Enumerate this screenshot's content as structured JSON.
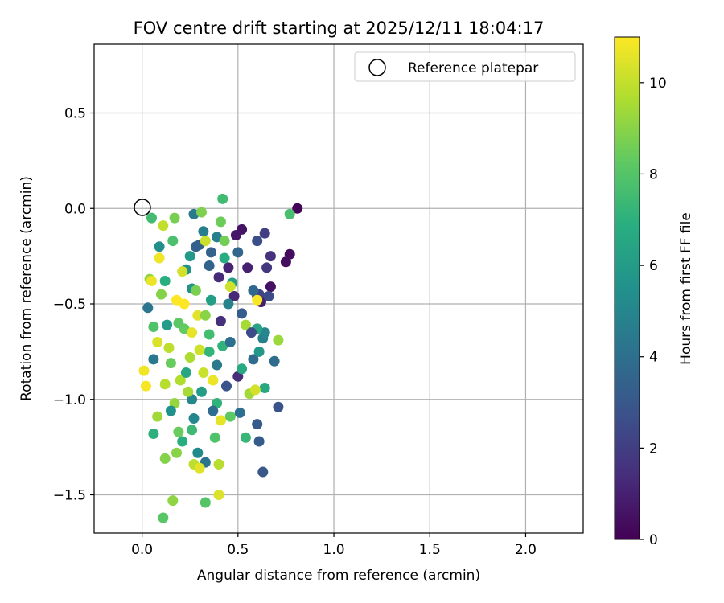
{
  "chart_data": {
    "type": "scatter",
    "title": "FOV centre drift starting at 2025/12/11 18:04:17",
    "xlabel": "Angular distance from reference (arcmin)",
    "ylabel": "Rotation from reference (arcmin)",
    "xlim": [
      -0.25,
      2.3
    ],
    "ylim": [
      -1.7,
      0.86
    ],
    "xticks": [
      0.0,
      0.5,
      1.0,
      1.5,
      2.0
    ],
    "xtick_labels": [
      "0.0",
      "0.5",
      "1.0",
      "1.5",
      "2.0"
    ],
    "yticks": [
      0.5,
      0.0,
      -0.5,
      -1.0,
      -1.5
    ],
    "ytick_labels": [
      "0.5",
      "0.0",
      "−0.5",
      "−1.0",
      "−1.5"
    ],
    "grid": true,
    "legend": {
      "position": "top-right",
      "entries": [
        "Reference platepar"
      ]
    },
    "reference_point": {
      "x": 0.0,
      "y": 0.0
    },
    "colorbar": {
      "label": "Hours from first FF file",
      "colormap": "viridis",
      "range": [
        0,
        11
      ],
      "ticks": [
        0,
        2,
        4,
        6,
        8,
        10
      ],
      "tick_labels": [
        "0",
        "2",
        "4",
        "6",
        "8",
        "10"
      ]
    },
    "series": [
      {
        "name": "FOV centre drift",
        "points": [
          {
            "x": 0.81,
            "y": 0.0,
            "hours": 0.1
          },
          {
            "x": 0.77,
            "y": -0.24,
            "hours": 0.3
          },
          {
            "x": 0.75,
            "y": -0.28,
            "hours": 0.4
          },
          {
            "x": 0.67,
            "y": -0.41,
            "hours": 0.5
          },
          {
            "x": 0.52,
            "y": -0.11,
            "hours": 0.6
          },
          {
            "x": 0.49,
            "y": -0.14,
            "hours": 0.7
          },
          {
            "x": 0.6,
            "y": -0.46,
            "hours": 0.8
          },
          {
            "x": 0.62,
            "y": -0.49,
            "hours": 0.9
          },
          {
            "x": 0.55,
            "y": -0.31,
            "hours": 1.0
          },
          {
            "x": 0.45,
            "y": -0.31,
            "hours": 1.1
          },
          {
            "x": 0.48,
            "y": -0.46,
            "hours": 1.2
          },
          {
            "x": 0.4,
            "y": -0.36,
            "hours": 1.3
          },
          {
            "x": 0.5,
            "y": -0.88,
            "hours": 1.4
          },
          {
            "x": 0.41,
            "y": -0.59,
            "hours": 1.5
          },
          {
            "x": 0.67,
            "y": -0.25,
            "hours": 1.6
          },
          {
            "x": 0.65,
            "y": -0.31,
            "hours": 1.8
          },
          {
            "x": 0.64,
            "y": -0.13,
            "hours": 2.0
          },
          {
            "x": 0.61,
            "y": -0.45,
            "hours": 2.2
          },
          {
            "x": 0.66,
            "y": -0.46,
            "hours": 2.4
          },
          {
            "x": 0.6,
            "y": -0.17,
            "hours": 2.6
          },
          {
            "x": 0.71,
            "y": -1.04,
            "hours": 2.8
          },
          {
            "x": 0.63,
            "y": -1.38,
            "hours": 3.0
          },
          {
            "x": 0.6,
            "y": -1.13,
            "hours": 3.1
          },
          {
            "x": 0.61,
            "y": -1.22,
            "hours": 3.2
          },
          {
            "x": 0.28,
            "y": -0.2,
            "hours": 3.3
          },
          {
            "x": 0.3,
            "y": -0.19,
            "hours": 3.4
          },
          {
            "x": 0.36,
            "y": -0.23,
            "hours": 3.5
          },
          {
            "x": 0.5,
            "y": -0.23,
            "hours": 3.6
          },
          {
            "x": 0.58,
            "y": -0.43,
            "hours": 3.7
          },
          {
            "x": 0.58,
            "y": -0.79,
            "hours": 3.8
          },
          {
            "x": 0.69,
            "y": -0.8,
            "hours": 3.9
          },
          {
            "x": 0.51,
            "y": -1.07,
            "hours": 4.0
          },
          {
            "x": 0.33,
            "y": -1.33,
            "hours": 4.2
          },
          {
            "x": 0.03,
            "y": -0.52,
            "hours": 4.3
          },
          {
            "x": 0.06,
            "y": -0.79,
            "hours": 4.4
          },
          {
            "x": 0.27,
            "y": -0.03,
            "hours": 4.5
          },
          {
            "x": 0.32,
            "y": -0.12,
            "hours": 4.6
          },
          {
            "x": 0.39,
            "y": -0.15,
            "hours": 4.7
          },
          {
            "x": 0.63,
            "y": -0.68,
            "hours": 4.8
          },
          {
            "x": 0.64,
            "y": -0.65,
            "hours": 5.0
          },
          {
            "x": 0.26,
            "y": -1.0,
            "hours": 5.1
          },
          {
            "x": 0.29,
            "y": -1.28,
            "hours": 5.2
          },
          {
            "x": 0.09,
            "y": -0.2,
            "hours": 5.4
          },
          {
            "x": 0.23,
            "y": -0.32,
            "hours": 5.5
          },
          {
            "x": 0.26,
            "y": -0.42,
            "hours": 5.6
          },
          {
            "x": 0.61,
            "y": -0.75,
            "hours": 5.8
          },
          {
            "x": 0.13,
            "y": -0.61,
            "hours": 6.0
          },
          {
            "x": 0.36,
            "y": -0.48,
            "hours": 6.1
          },
          {
            "x": 0.47,
            "y": -0.39,
            "hours": 6.2
          },
          {
            "x": 0.6,
            "y": -0.63,
            "hours": 6.4
          },
          {
            "x": 0.64,
            "y": -0.94,
            "hours": 6.6
          },
          {
            "x": 0.52,
            "y": -0.84,
            "hours": 6.7
          },
          {
            "x": 0.43,
            "y": -0.26,
            "hours": 6.8
          },
          {
            "x": 0.21,
            "y": -1.22,
            "hours": 6.9
          },
          {
            "x": 0.06,
            "y": -1.18,
            "hours": 7.0
          },
          {
            "x": 0.39,
            "y": -1.02,
            "hours": 7.1
          },
          {
            "x": 0.35,
            "y": -0.75,
            "hours": 7.2
          },
          {
            "x": 0.54,
            "y": -1.2,
            "hours": 7.3
          },
          {
            "x": 0.26,
            "y": -1.16,
            "hours": 7.4
          },
          {
            "x": 0.42,
            "y": 0.05,
            "hours": 7.5
          },
          {
            "x": 0.05,
            "y": -0.05,
            "hours": 7.6
          },
          {
            "x": 0.77,
            "y": -0.03,
            "hours": 7.7
          },
          {
            "x": 0.16,
            "y": -0.17,
            "hours": 7.8
          },
          {
            "x": 0.38,
            "y": -1.2,
            "hours": 7.9
          },
          {
            "x": 0.33,
            "y": -1.54,
            "hours": 8.0
          },
          {
            "x": 0.11,
            "y": -1.62,
            "hours": 8.1
          },
          {
            "x": 0.46,
            "y": -1.09,
            "hours": 8.2
          },
          {
            "x": 0.22,
            "y": -0.63,
            "hours": 8.3
          },
          {
            "x": 0.15,
            "y": -0.81,
            "hours": 8.4
          },
          {
            "x": 0.41,
            "y": -0.07,
            "hours": 8.5
          },
          {
            "x": 0.43,
            "y": -0.17,
            "hours": 8.6
          },
          {
            "x": 0.17,
            "y": -0.05,
            "hours": 8.7
          },
          {
            "x": 0.31,
            "y": -0.02,
            "hours": 8.8
          },
          {
            "x": 0.12,
            "y": -1.31,
            "hours": 8.9
          },
          {
            "x": 0.18,
            "y": -1.28,
            "hours": 9.0
          },
          {
            "x": 0.16,
            "y": -1.53,
            "hours": 9.1
          },
          {
            "x": 0.04,
            "y": -0.37,
            "hours": 9.2
          },
          {
            "x": 0.71,
            "y": -0.69,
            "hours": 9.3
          },
          {
            "x": 0.56,
            "y": -0.97,
            "hours": 9.4
          },
          {
            "x": 0.54,
            "y": -0.61,
            "hours": 9.5
          },
          {
            "x": 0.25,
            "y": -0.78,
            "hours": 9.6
          },
          {
            "x": 0.2,
            "y": -0.9,
            "hours": 9.7
          },
          {
            "x": 0.4,
            "y": -1.34,
            "hours": 9.8
          },
          {
            "x": 0.27,
            "y": -1.34,
            "hours": 9.9
          },
          {
            "x": 0.11,
            "y": -0.09,
            "hours": 10.0
          },
          {
            "x": 0.33,
            "y": -0.17,
            "hours": 10.1
          },
          {
            "x": 0.46,
            "y": -0.41,
            "hours": 10.2
          },
          {
            "x": 0.59,
            "y": -0.95,
            "hours": 10.3
          },
          {
            "x": 0.4,
            "y": -1.5,
            "hours": 10.4
          },
          {
            "x": 0.3,
            "y": -1.36,
            "hours": 10.5
          },
          {
            "x": 0.41,
            "y": -1.11,
            "hours": 10.6
          },
          {
            "x": 0.05,
            "y": -0.38,
            "hours": 10.7
          },
          {
            "x": 0.01,
            "y": -0.85,
            "hours": 10.8
          },
          {
            "x": 0.6,
            "y": -0.48,
            "hours": 10.9
          },
          {
            "x": 0.18,
            "y": -0.48,
            "hours": 11.0
          },
          {
            "x": 0.22,
            "y": -0.5,
            "hours": 11.0
          },
          {
            "x": 0.09,
            "y": -0.26,
            "hours": 10.8
          },
          {
            "x": 0.29,
            "y": -0.56,
            "hours": 10.5
          },
          {
            "x": 0.21,
            "y": -0.33,
            "hours": 10.3
          },
          {
            "x": 0.26,
            "y": -0.65,
            "hours": 10.6
          },
          {
            "x": 0.08,
            "y": -0.7,
            "hours": 10.4
          },
          {
            "x": 0.14,
            "y": -0.73,
            "hours": 9.9
          },
          {
            "x": 0.32,
            "y": -0.86,
            "hours": 10.1
          },
          {
            "x": 0.37,
            "y": -0.9,
            "hours": 10.7
          },
          {
            "x": 0.12,
            "y": -0.92,
            "hours": 9.8
          },
          {
            "x": 0.02,
            "y": -0.93,
            "hours": 10.9
          },
          {
            "x": 0.24,
            "y": -0.96,
            "hours": 9.5
          },
          {
            "x": 0.17,
            "y": -1.02,
            "hours": 9.2
          },
          {
            "x": 0.33,
            "y": -0.56,
            "hours": 9.0
          },
          {
            "x": 0.28,
            "y": -0.43,
            "hours": 8.7
          },
          {
            "x": 0.19,
            "y": -0.6,
            "hours": 8.2
          },
          {
            "x": 0.35,
            "y": -0.66,
            "hours": 7.6
          },
          {
            "x": 0.42,
            "y": -0.72,
            "hours": 7.1
          },
          {
            "x": 0.23,
            "y": -0.86,
            "hours": 6.5
          },
          {
            "x": 0.31,
            "y": -0.96,
            "hours": 6.0
          },
          {
            "x": 0.15,
            "y": -1.06,
            "hours": 5.5
          },
          {
            "x": 0.27,
            "y": -1.1,
            "hours": 5.0
          },
          {
            "x": 0.39,
            "y": -0.82,
            "hours": 4.5
          },
          {
            "x": 0.46,
            "y": -0.7,
            "hours": 4.0
          },
          {
            "x": 0.35,
            "y": -0.3,
            "hours": 3.5
          },
          {
            "x": 0.52,
            "y": -0.55,
            "hours": 3.2
          },
          {
            "x": 0.44,
            "y": -0.93,
            "hours": 2.9
          },
          {
            "x": 0.57,
            "y": -0.65,
            "hours": 2.5
          },
          {
            "x": 0.1,
            "y": -0.45,
            "hours": 8.9
          },
          {
            "x": 0.06,
            "y": -0.62,
            "hours": 7.9
          },
          {
            "x": 0.12,
            "y": -0.38,
            "hours": 6.9
          },
          {
            "x": 0.25,
            "y": -0.25,
            "hours": 5.9
          },
          {
            "x": 0.45,
            "y": -0.5,
            "hours": 4.9
          },
          {
            "x": 0.37,
            "y": -1.06,
            "hours": 3.9
          },
          {
            "x": 0.19,
            "y": -1.17,
            "hours": 8.4
          },
          {
            "x": 0.08,
            "y": -1.09,
            "hours": 9.4
          },
          {
            "x": 0.3,
            "y": -0.74,
            "hours": 10.2
          }
        ]
      }
    ]
  }
}
